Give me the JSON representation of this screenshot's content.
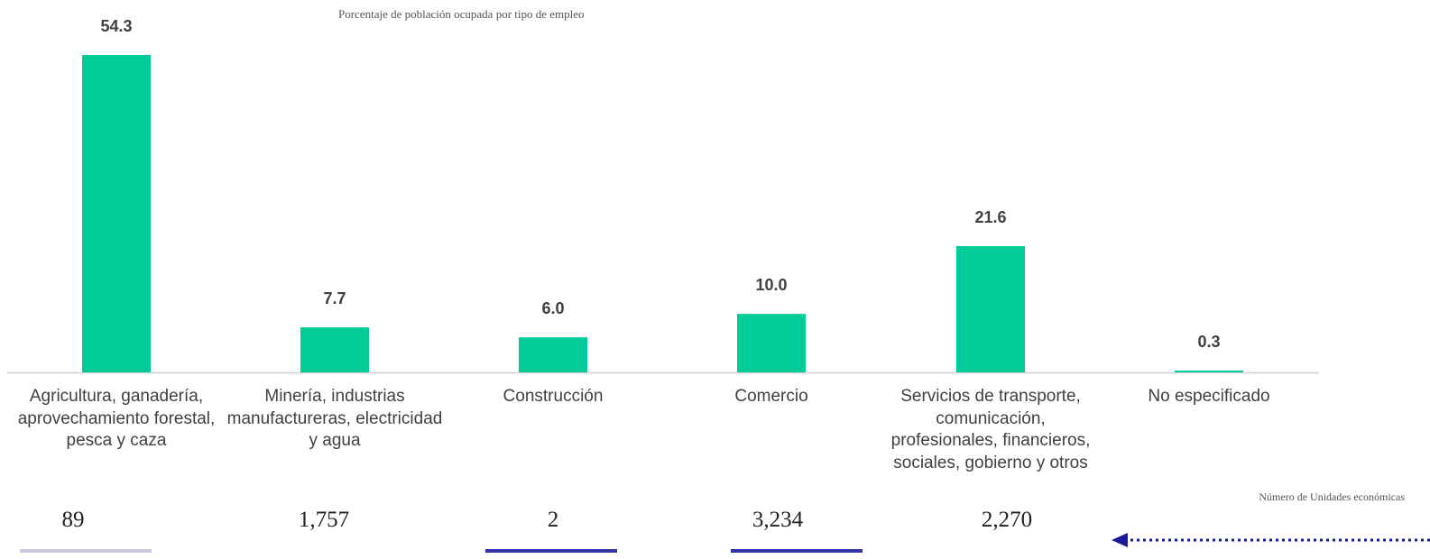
{
  "chart_data": {
    "type": "bar",
    "title": "Porcentaje de población ocupada por tipo de empleo",
    "categories": [
      "Agricultura, ganadería, aprovechamiento forestal, pesca y caza",
      "Minería, industrias manufactureras, electricidad y agua",
      "Construcción",
      "Comercio",
      "Servicios de transporte, comunicación, profesionales, financieros, sociales, gobierno y otros",
      "No especificado"
    ],
    "values": [
      54.3,
      7.7,
      6.0,
      10.0,
      21.6,
      0.3
    ],
    "value_labels": [
      "54.3",
      "7.7",
      "6.0",
      "10.0",
      "21.6",
      "0.3"
    ],
    "ylim": [
      0,
      54.3
    ],
    "bar_color": "#00CC99",
    "grid": false
  },
  "units": {
    "label": "Número de Unidades económicas",
    "values": [
      "89",
      "1,757",
      "2",
      "3,234",
      "2,270"
    ]
  },
  "colors": {
    "axis": "#d0d0d0",
    "value_text": "#404040",
    "underline_light": "#c8c8e0",
    "underline_dark": "#3333aa",
    "arrow": "#1a1a99"
  }
}
